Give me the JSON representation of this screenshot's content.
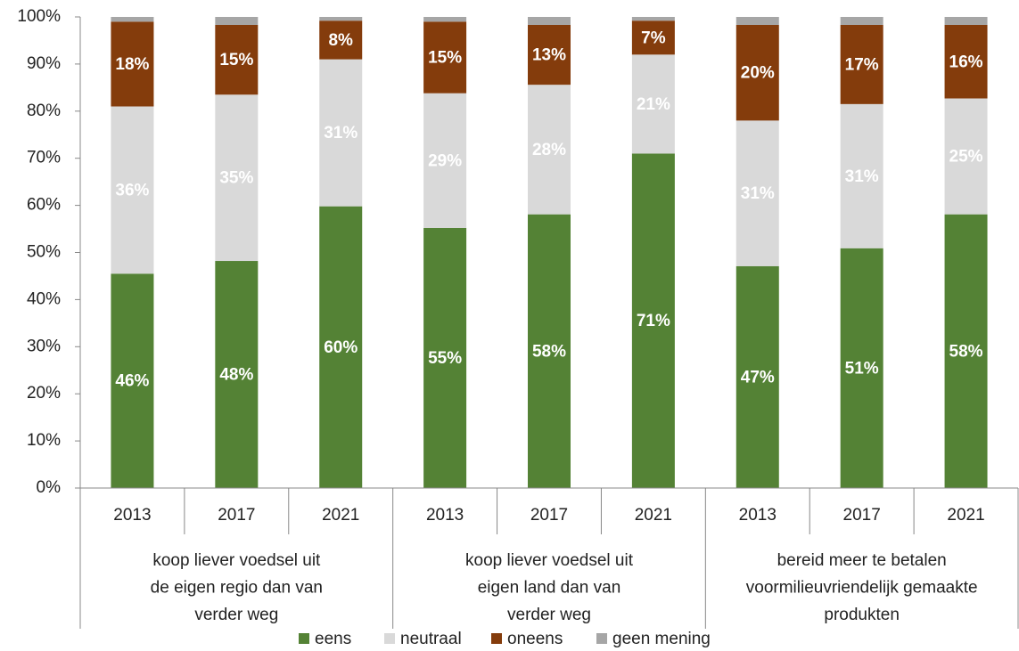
{
  "chart_data": {
    "type": "stacked-bar",
    "categories": [
      "2013",
      "2017",
      "2021",
      "2013",
      "2017",
      "2021",
      "2013",
      "2017",
      "2021"
    ],
    "groups": [
      {
        "lines": [
          "koop liever voedsel uit",
          "de eigen regio dan van",
          "verder weg"
        ]
      },
      {
        "lines": [
          "koop liever voedsel uit",
          "eigen land dan van",
          "verder weg"
        ]
      },
      {
        "lines": [
          "bereid meer te betalen",
          "voormilieuvriendelijk gemaakte",
          "produkten"
        ]
      }
    ],
    "series": [
      {
        "name": "eens",
        "color": "#548235",
        "values": [
          45.5,
          48.2,
          59.8,
          55.2,
          58.1,
          71,
          47.1,
          50.9,
          58.1
        ],
        "value_labels": [
          "46%",
          "48%",
          "60%",
          "55%",
          "58%",
          "71%",
          "47%",
          "51%",
          "58%"
        ]
      },
      {
        "name": "neutraal",
        "color": "#d9d9d9",
        "values": [
          35.5,
          35.3,
          31.2,
          28.6,
          27.5,
          21,
          30.9,
          30.6,
          24.6
        ],
        "value_labels": [
          "36%",
          "35%",
          "31%",
          "29%",
          "28%",
          "21%",
          "31%",
          "31%",
          "25%"
        ]
      },
      {
        "name": "oneens",
        "color": "#843c0c",
        "values": [
          18,
          14.8,
          8.2,
          15.2,
          12.7,
          7.2,
          20.3,
          16.8,
          15.6
        ],
        "value_labels": [
          "18%",
          "15%",
          "8%",
          "15%",
          "13%",
          "7%",
          "20%",
          "17%",
          "16%"
        ]
      },
      {
        "name": "geen mening",
        "color": "#a6a6a6",
        "values": [
          1,
          1.7,
          0.8,
          1,
          1.7,
          0.8,
          1.7,
          1.7,
          1.7
        ]
      }
    ],
    "ylim": [
      0,
      100
    ],
    "yticks": [
      {
        "value": 0,
        "label": "0%"
      },
      {
        "value": 10,
        "label": "10%"
      },
      {
        "value": 20,
        "label": "20%"
      },
      {
        "value": 30,
        "label": "30%"
      },
      {
        "value": 40,
        "label": "40%"
      },
      {
        "value": 50,
        "label": "50%"
      },
      {
        "value": 60,
        "label": "60%"
      },
      {
        "value": 70,
        "label": "70%"
      },
      {
        "value": 80,
        "label": "80%"
      },
      {
        "value": 90,
        "label": "90%"
      },
      {
        "value": 100,
        "label": "100%"
      }
    ],
    "grid": false,
    "legend": "bottom"
  }
}
